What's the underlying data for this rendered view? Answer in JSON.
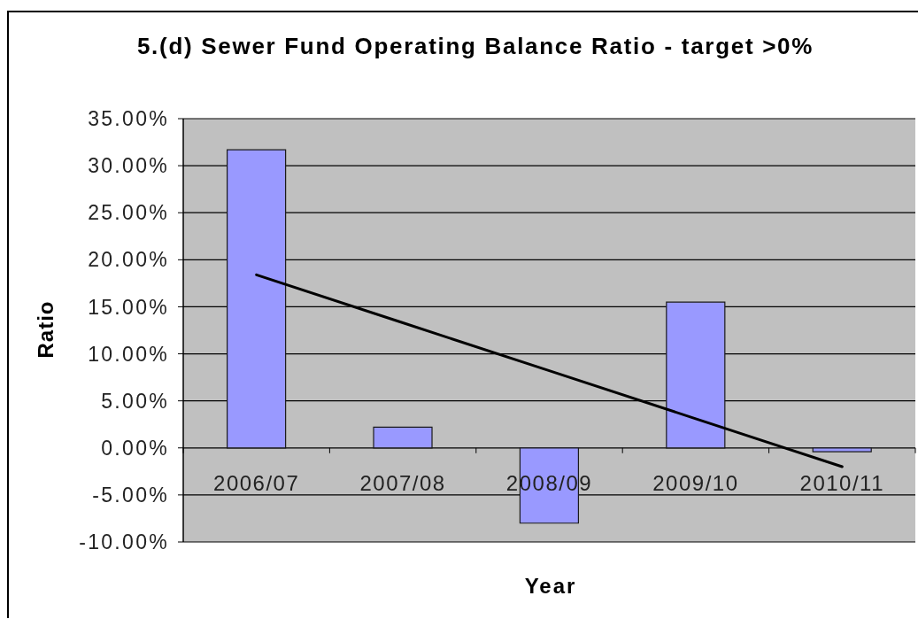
{
  "chart_data": {
    "type": "bar",
    "title": "5.(d) Sewer Fund Operating Balance Ratio - target >0%",
    "xlabel": "Year",
    "ylabel": "Ratio",
    "categories": [
      "2006/07",
      "2007/08",
      "2008/09",
      "2009/10",
      "2010/11"
    ],
    "series": [
      {
        "color": "#9999ff",
        "values": [
          31.7,
          2.2,
          -8.0,
          15.5,
          -0.4
        ]
      },
      {
        "type": "line",
        "color": "#000000",
        "values": [
          18.4,
          13.3,
          8.2,
          3.1,
          -2.0
        ]
      }
    ],
    "ylim": [
      -10,
      35
    ],
    "yticks": [
      {
        "value": 35,
        "label": "35.00%"
      },
      {
        "value": 30,
        "label": "30.00%"
      },
      {
        "value": 25,
        "label": "25.00%"
      },
      {
        "value": 20,
        "label": "20.00%"
      },
      {
        "value": 15,
        "label": "15.00%"
      },
      {
        "value": 10,
        "label": "10.00%"
      },
      {
        "value": 5,
        "label": "5.00%"
      },
      {
        "value": 0,
        "label": "0.00%"
      },
      {
        "value": -5,
        "label": "-5.00%"
      },
      {
        "value": -10,
        "label": "-10.00%"
      }
    ],
    "grid": "y",
    "marker": "none"
  }
}
